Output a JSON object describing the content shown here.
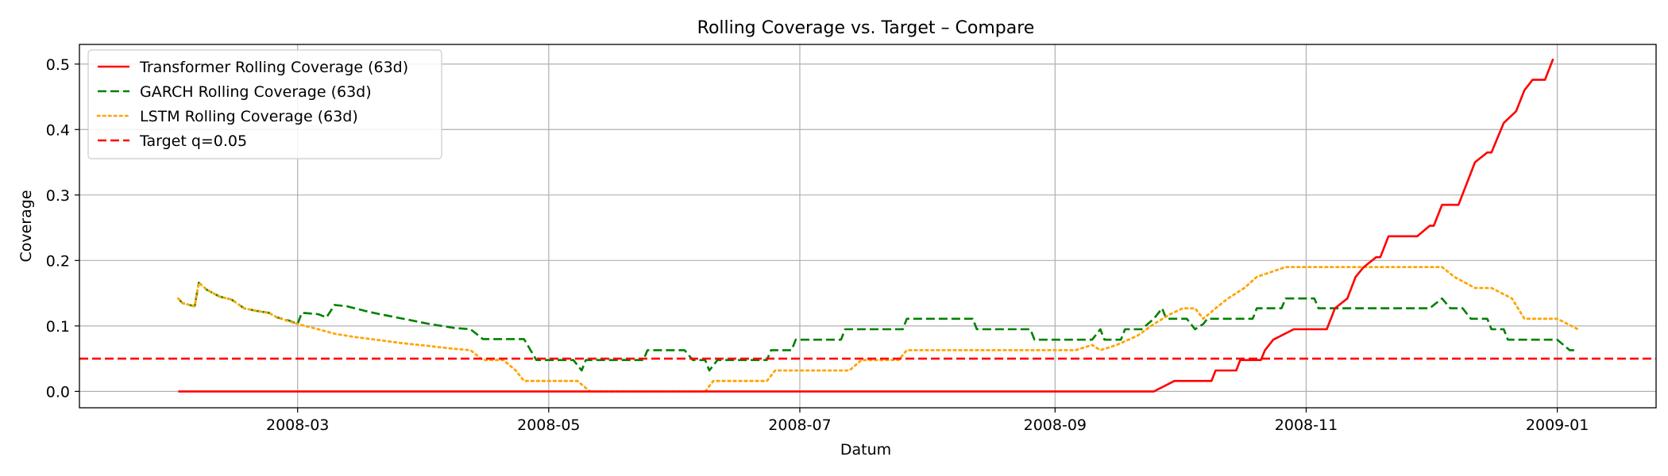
{
  "chart_data": {
    "type": "line",
    "title": "Rolling Coverage vs. Target – Compare",
    "xlabel": "Datum",
    "ylabel": "Coverage",
    "x_range": [
      "2008-01-08",
      "2009-01-25"
    ],
    "ylim": [
      -0.025,
      0.53
    ],
    "x_ticks": [
      {
        "date": "2008-03-01",
        "label": "2008-03"
      },
      {
        "date": "2008-05-01",
        "label": "2008-05"
      },
      {
        "date": "2008-07-01",
        "label": "2008-07"
      },
      {
        "date": "2008-09-01",
        "label": "2008-09"
      },
      {
        "date": "2008-11-01",
        "label": "2008-11"
      },
      {
        "date": "2009-01-01",
        "label": "2009-01"
      }
    ],
    "y_ticks": [
      {
        "value": 0.0,
        "label": "0.0"
      },
      {
        "value": 0.1,
        "label": "0.1"
      },
      {
        "value": 0.2,
        "label": "0.2"
      },
      {
        "value": 0.3,
        "label": "0.3"
      },
      {
        "value": 0.4,
        "label": "0.4"
      },
      {
        "value": 0.5,
        "label": "0.5"
      }
    ],
    "grid": true,
    "legend_position": "top-left",
    "series": [
      {
        "name": "Transformer Rolling Coverage (63d)",
        "color": "#ff0000",
        "linestyle": "solid",
        "points": [
          [
            "2008-02-01",
            0.0
          ],
          [
            "2008-09-25",
            0.0
          ],
          [
            "2008-09-30",
            0.016
          ],
          [
            "2008-10-09",
            0.016
          ],
          [
            "2008-10-10",
            0.032
          ],
          [
            "2008-10-15",
            0.032
          ],
          [
            "2008-10-16",
            0.048
          ],
          [
            "2008-10-21",
            0.048
          ],
          [
            "2008-10-22",
            0.063
          ],
          [
            "2008-10-24",
            0.079
          ],
          [
            "2008-10-29",
            0.095
          ],
          [
            "2008-11-06",
            0.095
          ],
          [
            "2008-11-08",
            0.127
          ],
          [
            "2008-11-11",
            0.142
          ],
          [
            "2008-11-13",
            0.175
          ],
          [
            "2008-11-15",
            0.19
          ],
          [
            "2008-11-18",
            0.205
          ],
          [
            "2008-11-19",
            0.205
          ],
          [
            "2008-11-21",
            0.237
          ],
          [
            "2008-11-28",
            0.237
          ],
          [
            "2008-12-01",
            0.253
          ],
          [
            "2008-12-02",
            0.253
          ],
          [
            "2008-12-04",
            0.285
          ],
          [
            "2008-12-08",
            0.285
          ],
          [
            "2008-12-12",
            0.35
          ],
          [
            "2008-12-15",
            0.365
          ],
          [
            "2008-12-16",
            0.365
          ],
          [
            "2008-12-19",
            0.41
          ],
          [
            "2008-12-22",
            0.428
          ],
          [
            "2008-12-24",
            0.46
          ],
          [
            "2008-12-26",
            0.476
          ],
          [
            "2008-12-29",
            0.476
          ],
          [
            "2008-12-31",
            0.508
          ]
        ]
      },
      {
        "name": "GARCH Rolling Coverage (63d)",
        "color": "#008000",
        "linestyle": "dashed",
        "points": [
          [
            "2008-02-01",
            0.142
          ],
          [
            "2008-02-02",
            0.135
          ],
          [
            "2008-02-05",
            0.13
          ],
          [
            "2008-02-06",
            0.166
          ],
          [
            "2008-02-08",
            0.155
          ],
          [
            "2008-02-11",
            0.145
          ],
          [
            "2008-02-14",
            0.14
          ],
          [
            "2008-02-17",
            0.127
          ],
          [
            "2008-02-20",
            0.123
          ],
          [
            "2008-02-23",
            0.12
          ],
          [
            "2008-02-25",
            0.113
          ],
          [
            "2008-02-28",
            0.108
          ],
          [
            "2008-03-01",
            0.103
          ],
          [
            "2008-03-02",
            0.12
          ],
          [
            "2008-03-06",
            0.118
          ],
          [
            "2008-03-08",
            0.113
          ],
          [
            "2008-03-10",
            0.132
          ],
          [
            "2008-03-13",
            0.13
          ],
          [
            "2008-03-18",
            0.122
          ],
          [
            "2008-03-21",
            0.118
          ],
          [
            "2008-03-25",
            0.113
          ],
          [
            "2008-03-29",
            0.108
          ],
          [
            "2008-04-02",
            0.103
          ],
          [
            "2008-04-08",
            0.097
          ],
          [
            "2008-04-12",
            0.095
          ],
          [
            "2008-04-15",
            0.08
          ],
          [
            "2008-04-25",
            0.08
          ],
          [
            "2008-04-28",
            0.048
          ],
          [
            "2008-05-07",
            0.048
          ],
          [
            "2008-05-09",
            0.032
          ],
          [
            "2008-05-10",
            0.048
          ],
          [
            "2008-05-24",
            0.048
          ],
          [
            "2008-05-25",
            0.063
          ],
          [
            "2008-06-03",
            0.063
          ],
          [
            "2008-06-05",
            0.048
          ],
          [
            "2008-06-08",
            0.048
          ],
          [
            "2008-06-09",
            0.032
          ],
          [
            "2008-06-11",
            0.048
          ],
          [
            "2008-06-23",
            0.048
          ],
          [
            "2008-06-24",
            0.063
          ],
          [
            "2008-06-29",
            0.063
          ],
          [
            "2008-06-30",
            0.079
          ],
          [
            "2008-07-11",
            0.079
          ],
          [
            "2008-07-12",
            0.095
          ],
          [
            "2008-07-26",
            0.095
          ],
          [
            "2008-07-27",
            0.111
          ],
          [
            "2008-08-12",
            0.111
          ],
          [
            "2008-08-13",
            0.095
          ],
          [
            "2008-08-26",
            0.095
          ],
          [
            "2008-08-27",
            0.079
          ],
          [
            "2008-09-10",
            0.079
          ],
          [
            "2008-09-12",
            0.095
          ],
          [
            "2008-09-13",
            0.079
          ],
          [
            "2008-09-17",
            0.079
          ],
          [
            "2008-09-18",
            0.095
          ],
          [
            "2008-09-22",
            0.095
          ],
          [
            "2008-09-25",
            0.111
          ],
          [
            "2008-09-27",
            0.127
          ],
          [
            "2008-09-28",
            0.111
          ],
          [
            "2008-10-03",
            0.111
          ],
          [
            "2008-10-05",
            0.095
          ],
          [
            "2008-10-07",
            0.103
          ],
          [
            "2008-10-08",
            0.111
          ],
          [
            "2008-10-19",
            0.111
          ],
          [
            "2008-10-20",
            0.127
          ],
          [
            "2008-10-26",
            0.127
          ],
          [
            "2008-10-27",
            0.142
          ],
          [
            "2008-11-03",
            0.142
          ],
          [
            "2008-11-04",
            0.127
          ],
          [
            "2008-12-01",
            0.127
          ],
          [
            "2008-12-04",
            0.142
          ],
          [
            "2008-12-06",
            0.127
          ],
          [
            "2008-12-09",
            0.127
          ],
          [
            "2008-12-11",
            0.111
          ],
          [
            "2008-12-15",
            0.111
          ],
          [
            "2008-12-16",
            0.095
          ],
          [
            "2008-12-19",
            0.095
          ],
          [
            "2008-12-20",
            0.079
          ],
          [
            "2009-01-01",
            0.079
          ],
          [
            "2009-01-04",
            0.063
          ],
          [
            "2009-01-06",
            0.063
          ]
        ]
      },
      {
        "name": "LSTM Rolling Coverage (63d)",
        "color": "#ffa500",
        "linestyle": "dotted",
        "points": [
          [
            "2008-02-01",
            0.142
          ],
          [
            "2008-02-02",
            0.135
          ],
          [
            "2008-02-05",
            0.13
          ],
          [
            "2008-02-06",
            0.166
          ],
          [
            "2008-02-08",
            0.155
          ],
          [
            "2008-02-11",
            0.145
          ],
          [
            "2008-02-14",
            0.14
          ],
          [
            "2008-02-17",
            0.127
          ],
          [
            "2008-02-20",
            0.123
          ],
          [
            "2008-02-23",
            0.12
          ],
          [
            "2008-02-25",
            0.113
          ],
          [
            "2008-03-01",
            0.103
          ],
          [
            "2008-03-06",
            0.095
          ],
          [
            "2008-03-10",
            0.088
          ],
          [
            "2008-03-15",
            0.083
          ],
          [
            "2008-03-20",
            0.079
          ],
          [
            "2008-03-26",
            0.074
          ],
          [
            "2008-04-01",
            0.07
          ],
          [
            "2008-04-08",
            0.065
          ],
          [
            "2008-04-12",
            0.063
          ],
          [
            "2008-04-15",
            0.048
          ],
          [
            "2008-04-20",
            0.048
          ],
          [
            "2008-04-23",
            0.032
          ],
          [
            "2008-04-25",
            0.016
          ],
          [
            "2008-05-08",
            0.016
          ],
          [
            "2008-05-11",
            0.0
          ],
          [
            "2008-06-08",
            0.0
          ],
          [
            "2008-06-10",
            0.016
          ],
          [
            "2008-06-23",
            0.016
          ],
          [
            "2008-06-25",
            0.032
          ],
          [
            "2008-07-13",
            0.032
          ],
          [
            "2008-07-16",
            0.048
          ],
          [
            "2008-07-25",
            0.048
          ],
          [
            "2008-07-27",
            0.063
          ],
          [
            "2008-09-06",
            0.063
          ],
          [
            "2008-09-10",
            0.071
          ],
          [
            "2008-09-12",
            0.063
          ],
          [
            "2008-09-16",
            0.071
          ],
          [
            "2008-09-21",
            0.085
          ],
          [
            "2008-09-25",
            0.103
          ],
          [
            "2008-09-29",
            0.118
          ],
          [
            "2008-10-02",
            0.127
          ],
          [
            "2008-10-05",
            0.127
          ],
          [
            "2008-10-07",
            0.111
          ],
          [
            "2008-10-10",
            0.127
          ],
          [
            "2008-10-13",
            0.142
          ],
          [
            "2008-10-17",
            0.158
          ],
          [
            "2008-10-20",
            0.175
          ],
          [
            "2008-10-27",
            0.19
          ],
          [
            "2008-12-04",
            0.19
          ],
          [
            "2008-12-07",
            0.175
          ],
          [
            "2008-12-12",
            0.158
          ],
          [
            "2008-12-16",
            0.158
          ],
          [
            "2008-12-21",
            0.142
          ],
          [
            "2008-12-24",
            0.111
          ],
          [
            "2009-01-01",
            0.111
          ],
          [
            "2009-01-06",
            0.095
          ]
        ]
      },
      {
        "name": "Target q=0.05",
        "color": "#ff0000",
        "linestyle": "dashed",
        "hline": 0.05
      }
    ]
  }
}
